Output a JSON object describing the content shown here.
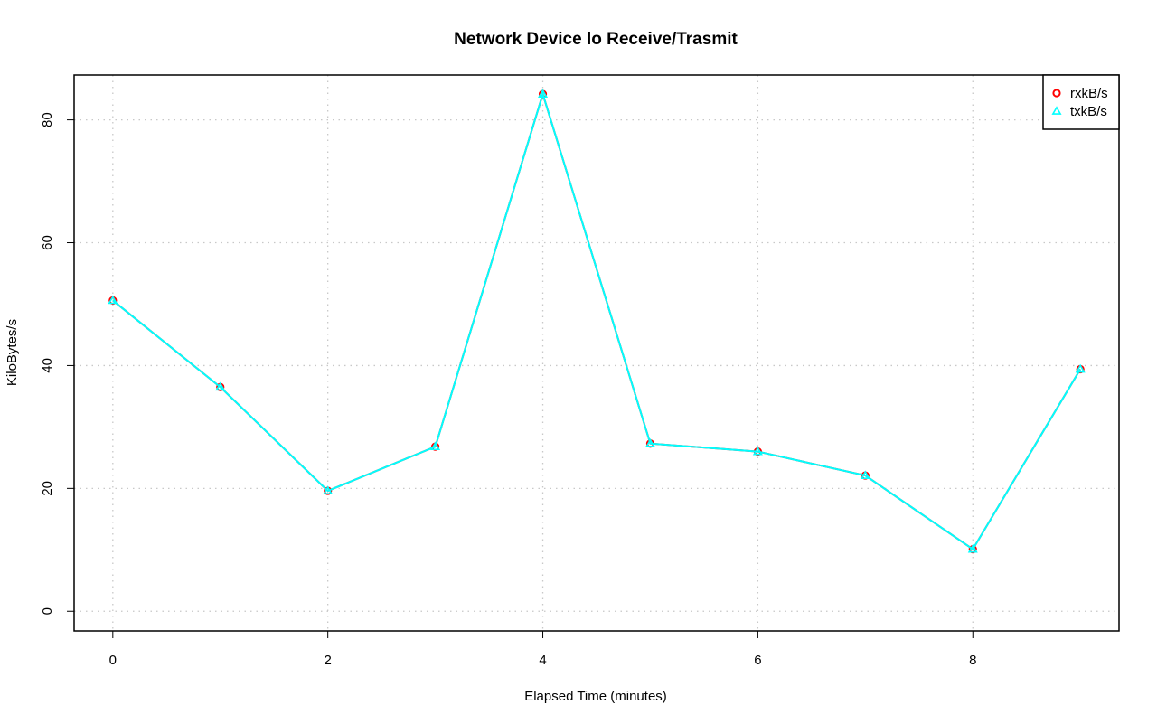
{
  "chart_data": {
    "type": "line",
    "title": "Network Device lo Receive/Trasmit",
    "xlabel": "Elapsed Time (minutes)",
    "ylabel": "KiloBytes/s",
    "x": [
      0,
      1,
      2,
      3,
      4,
      5,
      6,
      7,
      8,
      9
    ],
    "xlim": [
      -0.36,
      9.36
    ],
    "ylim": [
      -3.2,
      87.3
    ],
    "x_ticks": [
      0,
      2,
      4,
      6,
      8
    ],
    "y_ticks": [
      0,
      20,
      40,
      60,
      80
    ],
    "grid": true,
    "legend_position": "top-right",
    "series": [
      {
        "name": "rxkB/s",
        "color": "#ff0000",
        "marker": "circle",
        "values": [
          50.6,
          36.5,
          19.6,
          26.8,
          84.2,
          27.3,
          26.0,
          22.1,
          10.1,
          39.4
        ]
      },
      {
        "name": "txkB/s",
        "color": "#00ffff",
        "marker": "triangle",
        "values": [
          50.6,
          36.5,
          19.6,
          26.8,
          84.2,
          27.3,
          26.0,
          22.1,
          10.1,
          39.4
        ]
      }
    ]
  }
}
